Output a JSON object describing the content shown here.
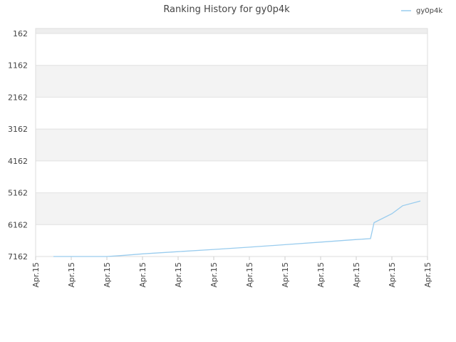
{
  "chart_data": {
    "type": "line",
    "title": "Ranking History for gy0p4k",
    "xlabel": "",
    "ylabel": "",
    "y_axis": "reversed",
    "ylim": [
      7162,
      162
    ],
    "yticks": [
      "162",
      "1162",
      "2162",
      "3162",
      "4162",
      "5162",
      "6162",
      "7162"
    ],
    "xticks": [
      "Apr.15",
      "Apr.15",
      "Apr.15",
      "Apr.15",
      "Apr.15",
      "Apr.15",
      "Apr.15",
      "Apr.15",
      "Apr.15",
      "Apr.15",
      "Apr.15",
      "Apr.15"
    ],
    "grid": true,
    "banded_background": true,
    "legend": "top-right",
    "colors": {
      "line": "#99ccee",
      "band": "#f3f3f3",
      "grid": "#e2e2e2",
      "axis": "#dddddd"
    },
    "series": [
      {
        "name": "gy0p4k",
        "x": [
          0.5,
          1.5,
          2.0,
          2.5,
          3.0,
          4.0,
          5.0,
          6.0,
          7.0,
          8.0,
          9.0,
          9.4,
          9.5,
          10.0,
          10.3,
          10.8
        ],
        "values": [
          7162,
          7162,
          7162,
          7125,
          7080,
          7010,
          6940,
          6870,
          6790,
          6710,
          6630,
          6600,
          6100,
          5820,
          5570,
          5420
        ]
      }
    ]
  }
}
